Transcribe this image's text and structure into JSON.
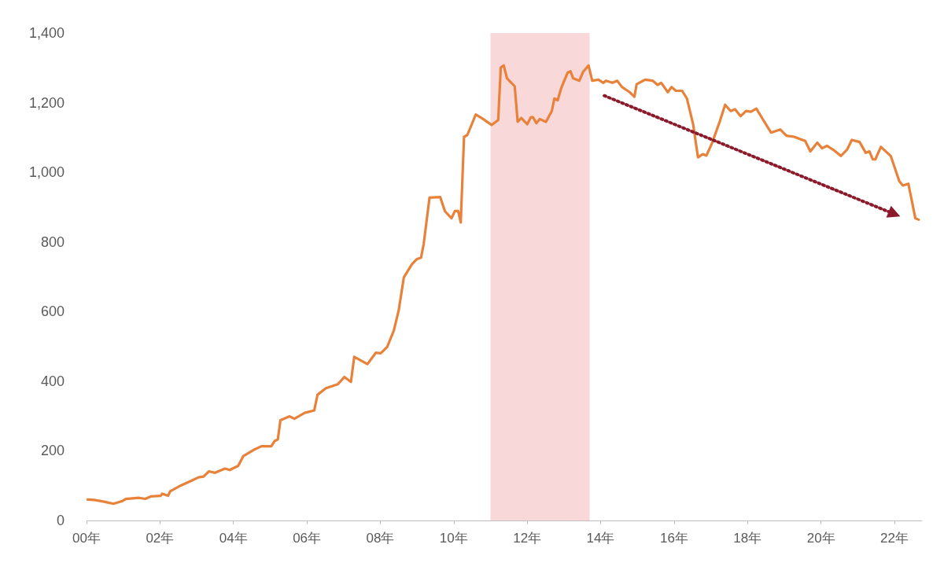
{
  "chart_data": {
    "type": "line",
    "xlim": [
      0,
      22.75
    ],
    "xticks": [
      {
        "value": 0,
        "label": "00年"
      },
      {
        "value": 2,
        "label": "02年"
      },
      {
        "value": 4,
        "label": "04年"
      },
      {
        "value": 6,
        "label": "06年"
      },
      {
        "value": 8,
        "label": "08年"
      },
      {
        "value": 10,
        "label": "10年"
      },
      {
        "value": 12,
        "label": "12年"
      },
      {
        "value": 14,
        "label": "14年"
      },
      {
        "value": 16,
        "label": "16年"
      },
      {
        "value": 18,
        "label": "18年"
      },
      {
        "value": 20,
        "label": "20年"
      },
      {
        "value": 22,
        "label": "22年"
      }
    ],
    "ylim": [
      0,
      1400
    ],
    "yticks": [
      {
        "value": 0,
        "label": "0"
      },
      {
        "value": 200,
        "label": "200"
      },
      {
        "value": 400,
        "label": "400"
      },
      {
        "value": 600,
        "label": "600"
      },
      {
        "value": 800,
        "label": "800"
      },
      {
        "value": 1000,
        "label": "1,000"
      },
      {
        "value": 1200,
        "label": "1,200"
      },
      {
        "value": 1400,
        "label": "1,400"
      }
    ],
    "grid": false,
    "bands": [
      {
        "axis": "x",
        "from": 11.0,
        "to": 13.7,
        "color": "#f8d8d8"
      }
    ],
    "series": [
      {
        "color": "#e8823a",
        "marker": "none",
        "line_style": "solid",
        "x": [
          0.03,
          0.21,
          0.48,
          0.73,
          0.98,
          1.07,
          1.43,
          1.6,
          1.75,
          2.02,
          2.06,
          2.22,
          2.28,
          2.56,
          2.83,
          3.05,
          3.19,
          3.33,
          3.5,
          3.77,
          3.9,
          4.13,
          4.27,
          4.54,
          4.76,
          5.03,
          5.12,
          5.21,
          5.28,
          5.53,
          5.66,
          5.94,
          6.2,
          6.29,
          6.52,
          6.84,
          7.02,
          7.2,
          7.29,
          7.65,
          7.88,
          8.01,
          8.19,
          8.37,
          8.5,
          8.64,
          8.86,
          9.0,
          9.11,
          9.18,
          9.34,
          9.63,
          9.76,
          9.94,
          10.03,
          10.12,
          10.19,
          10.28,
          10.37,
          10.6,
          10.8,
          11.03,
          11.21,
          11.28,
          11.36,
          11.45,
          11.66,
          11.74,
          11.84,
          12.0,
          12.1,
          12.16,
          12.25,
          12.34,
          12.51,
          12.67,
          12.74,
          12.83,
          12.93,
          13.1,
          13.18,
          13.25,
          13.42,
          13.52,
          13.67,
          13.77,
          13.94,
          14.07,
          14.15,
          14.32,
          14.45,
          14.58,
          14.79,
          14.92,
          14.98,
          15.21,
          15.42,
          15.55,
          15.65,
          15.83,
          15.93,
          16.05,
          16.22,
          16.35,
          16.52,
          16.65,
          16.78,
          16.88,
          17.03,
          17.24,
          17.39,
          17.54,
          17.66,
          17.81,
          17.96,
          18.09,
          18.24,
          18.43,
          18.64,
          18.89,
          19.06,
          19.27,
          19.57,
          19.71,
          19.9,
          20.03,
          20.16,
          20.33,
          20.54,
          20.71,
          20.84,
          21.05,
          21.22,
          21.32,
          21.41,
          21.48,
          21.63,
          21.9,
          22.13,
          22.23,
          22.38,
          22.57,
          22.66
        ],
        "values": [
          60,
          59,
          54,
          48,
          56,
          62,
          65,
          62,
          69,
          71,
          77,
          71,
          84,
          100,
          113,
          124,
          126,
          141,
          137,
          149,
          145,
          157,
          185,
          202,
          213,
          213,
          228,
          233,
          288,
          299,
          292,
          309,
          316,
          361,
          380,
          391,
          412,
          398,
          470,
          449,
          482,
          480,
          499,
          546,
          603,
          698,
          736,
          751,
          755,
          793,
          927,
          929,
          888,
          868,
          889,
          889,
          856,
          1102,
          1107,
          1166,
          1153,
          1136,
          1150,
          1301,
          1307,
          1270,
          1247,
          1145,
          1156,
          1138,
          1158,
          1158,
          1141,
          1153,
          1145,
          1176,
          1212,
          1207,
          1243,
          1286,
          1290,
          1270,
          1263,
          1288,
          1307,
          1263,
          1266,
          1257,
          1263,
          1257,
          1263,
          1245,
          1230,
          1217,
          1253,
          1266,
          1263,
          1251,
          1257,
          1230,
          1245,
          1234,
          1234,
          1212,
          1137,
          1043,
          1052,
          1048,
          1083,
          1145,
          1194,
          1176,
          1181,
          1161,
          1176,
          1174,
          1183,
          1150,
          1114,
          1123,
          1105,
          1102,
          1090,
          1060,
          1085,
          1069,
          1076,
          1065,
          1047,
          1065,
          1093,
          1087,
          1056,
          1060,
          1037,
          1037,
          1073,
          1047,
          975,
          962,
          967,
          868,
          864
        ]
      },
      {
        "color": "#8b1a2b",
        "marker": "triangle",
        "line_style": "dotted",
        "x": [
          14.1,
          22.0
        ],
        "values": [
          1220,
          880
        ]
      }
    ]
  }
}
